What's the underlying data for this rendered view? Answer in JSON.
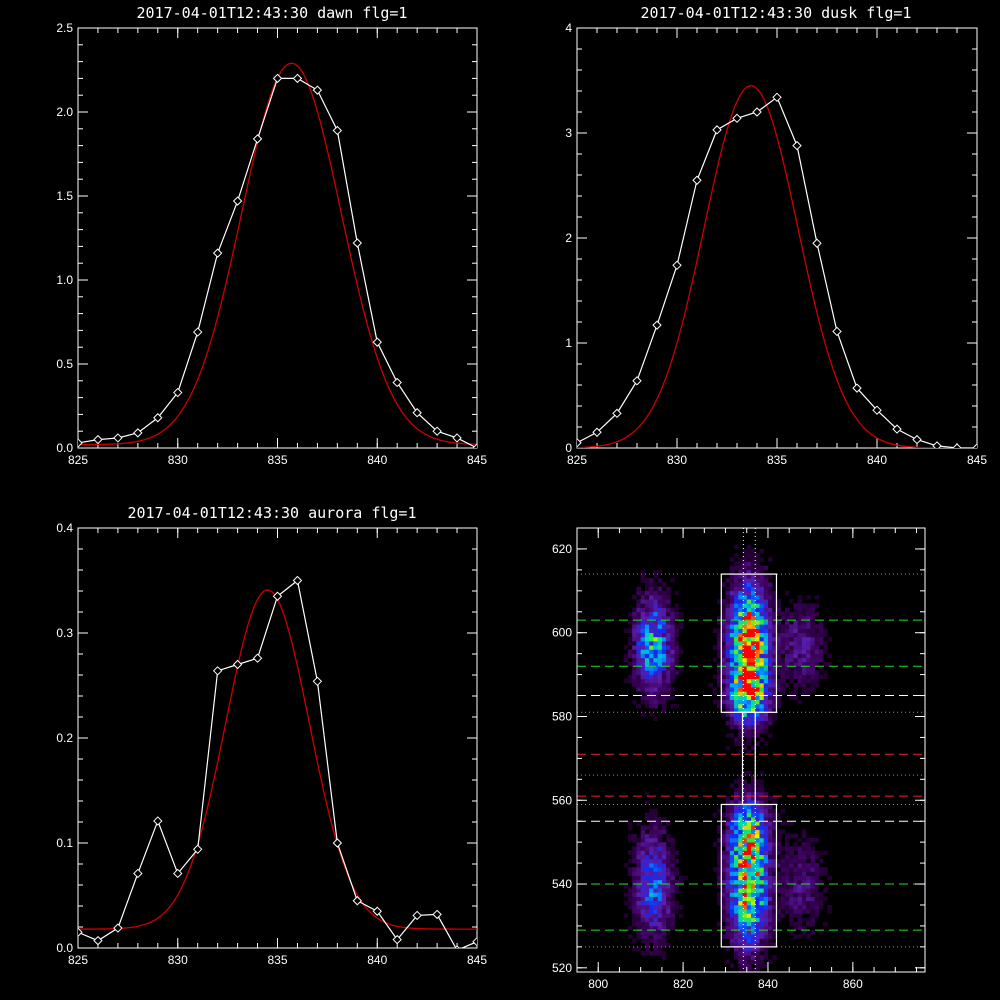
{
  "chart_data": [
    {
      "type": "line",
      "title": "2017-04-01T12:43:30 dawn flg=1",
      "xlim": [
        825,
        845
      ],
      "ylim": [
        0,
        2.5
      ],
      "xticks": [
        "825",
        "830",
        "835",
        "840",
        "845"
      ],
      "yticks": [
        "0.0",
        "0.5",
        "1.0",
        "1.5",
        "2.0",
        "2.5"
      ],
      "series": [
        {
          "role": "measured",
          "color": "#ffffff",
          "marker": "diamond",
          "x": [
            825,
            826,
            827,
            828,
            829,
            830,
            831,
            832,
            833,
            834,
            835,
            836,
            837,
            838,
            839,
            840,
            841,
            842,
            843,
            844,
            845
          ],
          "y": [
            0.03,
            0.05,
            0.06,
            0.09,
            0.18,
            0.33,
            0.69,
            1.16,
            1.47,
            1.84,
            2.2,
            2.2,
            2.13,
            1.89,
            1.22,
            0.63,
            0.39,
            0.21,
            0.1,
            0.06,
            0.0
          ]
        },
        {
          "role": "fit",
          "color": "#cc0000",
          "model": "gaussian",
          "amp": 2.27,
          "center": 835.7,
          "sigma": 2.5,
          "offset": 0.02
        }
      ]
    },
    {
      "type": "line",
      "title": "2017-04-01T12:43:30 dusk flg=1",
      "xlim": [
        825,
        845
      ],
      "ylim": [
        0,
        4
      ],
      "xticks": [
        "825",
        "830",
        "835",
        "840",
        "845"
      ],
      "yticks": [
        "0",
        "1",
        "2",
        "3",
        "4"
      ],
      "series": [
        {
          "role": "measured",
          "color": "#ffffff",
          "marker": "diamond",
          "x": [
            825,
            826,
            827,
            828,
            829,
            830,
            831,
            832,
            833,
            834,
            835,
            836,
            837,
            838,
            839,
            840,
            841,
            842,
            843,
            844,
            845
          ],
          "y": [
            0.05,
            0.15,
            0.33,
            0.64,
            1.17,
            1.74,
            2.55,
            3.03,
            3.14,
            3.2,
            3.34,
            2.88,
            1.95,
            1.11,
            0.57,
            0.36,
            0.18,
            0.08,
            0.02,
            0.0,
            0.0
          ]
        },
        {
          "role": "fit",
          "color": "#cc0000",
          "model": "gaussian",
          "amp": 3.45,
          "center": 833.7,
          "sigma": 2.35,
          "offset": 0.0
        }
      ]
    },
    {
      "type": "line",
      "title": "2017-04-01T12:43:30 aurora flg=1",
      "xlim": [
        825,
        845
      ],
      "ylim": [
        0,
        0.4
      ],
      "xticks": [
        "825",
        "830",
        "835",
        "840",
        "845"
      ],
      "yticks": [
        "0.0",
        "0.1",
        "0.2",
        "0.3",
        "0.4"
      ],
      "series": [
        {
          "role": "measured",
          "color": "#ffffff",
          "marker": "diamond",
          "x": [
            825,
            826,
            827,
            828,
            829,
            830,
            831,
            832,
            833,
            834,
            835,
            836,
            837,
            838,
            839,
            840,
            841,
            842,
            843,
            844,
            845
          ],
          "y": [
            0.015,
            0.007,
            0.019,
            0.071,
            0.121,
            0.071,
            0.094,
            0.264,
            0.27,
            0.276,
            0.335,
            0.35,
            0.254,
            0.1,
            0.045,
            0.035,
            0.008,
            0.031,
            0.032,
            -0.002,
            0.006
          ]
        },
        {
          "role": "fit",
          "color": "#cc0000",
          "model": "gaussian",
          "amp": 0.323,
          "center": 834.5,
          "sigma": 2.1,
          "offset": 0.018
        }
      ]
    },
    {
      "type": "heatmap",
      "title": "",
      "xlim": [
        795,
        877
      ],
      "ylim": [
        519,
        625
      ],
      "xticks": [
        "800",
        "820",
        "840",
        "860"
      ],
      "yticks": [
        "520",
        "540",
        "560",
        "580",
        "600",
        "620"
      ],
      "colormap": "rainbow",
      "blobs": [
        {
          "x": 835.5,
          "y": 597,
          "sx": 3.0,
          "sy": 9,
          "amp": 1.0
        },
        {
          "x": 835.5,
          "y": 540,
          "sx": 3.0,
          "sy": 9,
          "amp": 0.85
        },
        {
          "x": 835.5,
          "y": 553,
          "sx": 3.0,
          "sy": 5,
          "amp": 0.45
        },
        {
          "x": 835.5,
          "y": 585,
          "sx": 3.0,
          "sy": 4,
          "amp": 0.55
        },
        {
          "x": 813,
          "y": 597,
          "sx": 2.8,
          "sy": 7,
          "amp": 0.55
        },
        {
          "x": 813,
          "y": 540,
          "sx": 2.8,
          "sy": 8,
          "amp": 0.42
        },
        {
          "x": 848,
          "y": 597,
          "sx": 3.2,
          "sy": 6,
          "amp": 0.2
        },
        {
          "x": 848,
          "y": 540,
          "sx": 3.2,
          "sy": 7,
          "amp": 0.16
        }
      ],
      "boxes": [
        {
          "x0": 829,
          "x1": 842,
          "y0": 581,
          "y1": 614,
          "color": "#ffffff"
        },
        {
          "x0": 829,
          "x1": 842,
          "y0": 525,
          "y1": 559,
          "color": "#ffffff"
        },
        {
          "x0": 834,
          "x1": 837,
          "y0": 559,
          "y1": 581,
          "color": "#ffffff"
        }
      ],
      "vlines_dotted": [
        834.2,
        837.0
      ],
      "hlines": [
        {
          "y": 614,
          "color": "#ff44ff",
          "style": "dotted"
        },
        {
          "y": 603,
          "color": "#22dd22",
          "style": "dashed"
        },
        {
          "y": 592,
          "color": "#22dd22",
          "style": "dashed"
        },
        {
          "y": 585,
          "color": "#ffffff",
          "style": "dashed"
        },
        {
          "y": 581,
          "color": "#ff44ff",
          "style": "dotted"
        },
        {
          "y": 571,
          "color": "#ee2222",
          "style": "dashed"
        },
        {
          "y": 566,
          "color": "#ff44ff",
          "style": "dotted"
        },
        {
          "y": 561,
          "color": "#ee2222",
          "style": "dashed"
        },
        {
          "y": 559,
          "color": "#ff44ff",
          "style": "dotted"
        },
        {
          "y": 555,
          "color": "#ffffff",
          "style": "dashed"
        },
        {
          "y": 540,
          "color": "#22dd22",
          "style": "dashed"
        },
        {
          "y": 529,
          "color": "#22dd22",
          "style": "dashed"
        },
        {
          "y": 525,
          "color": "#ff44ff",
          "style": "dotted"
        }
      ]
    }
  ]
}
